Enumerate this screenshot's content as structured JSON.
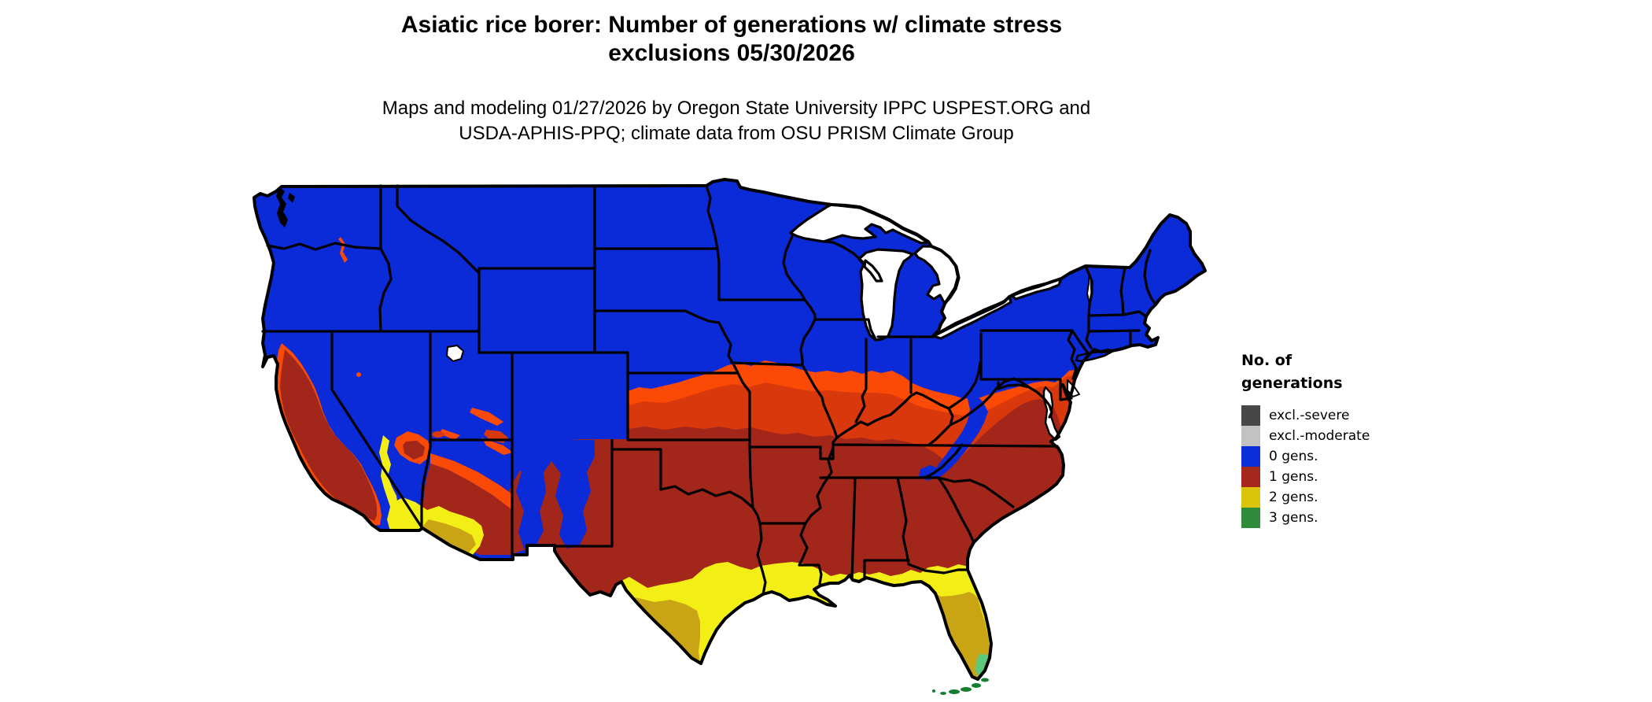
{
  "title": {
    "line1": "Asiatic rice borer: Number of generations w/ climate stress",
    "line2": "exclusions 05/30/2026"
  },
  "subtitle": {
    "line1": "Maps and modeling 01/27/2026 by Oregon State University IPPC USPEST.ORG and",
    "line2": "USDA-APHIS-PPQ; climate data from OSU PRISM Climate Group"
  },
  "legend": {
    "title_line1": "No. of",
    "title_line2": "generations",
    "entries": [
      {
        "label": "excl.-severe",
        "color": "#474747"
      },
      {
        "label": "excl.-moderate",
        "color": "#C2C2C2"
      },
      {
        "label": "0 gens.",
        "color": "#0A2FD8"
      },
      {
        "label": "1 gens.",
        "color": "#A5281C"
      },
      {
        "label": "2 gens.",
        "color": "#DCC40A"
      },
      {
        "label": "3 gens.",
        "color": "#2E8B39"
      }
    ]
  },
  "map": {
    "region_label": "conterminous United States",
    "colors": {
      "blue": "#0B2AD8",
      "orange": "#FA4A05",
      "orange_red": "#D8380C",
      "dark_red": "#A3261B",
      "yellow": "#F2EE16",
      "gold": "#C9A516",
      "light_green": "#5BC87C",
      "dark_green": "#157F2F",
      "water": "#FFFFFF",
      "border": "#000000"
    }
  }
}
